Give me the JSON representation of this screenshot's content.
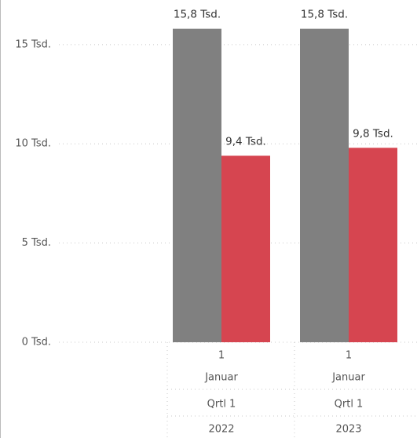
{
  "chart_data": {
    "type": "bar",
    "category_levels": [
      [
        "1",
        "1"
      ],
      [
        "Januar",
        "Januar"
      ],
      [
        "Qrtl 1",
        "Qrtl 1"
      ],
      [
        "2022",
        "2023"
      ]
    ],
    "series": [
      {
        "color": "#808080",
        "values": [
          15800,
          15800
        ],
        "value_labels": [
          "15,8 Tsd.",
          "15,8 Tsd."
        ]
      },
      {
        "color": "#d64550",
        "values": [
          9400,
          9800
        ],
        "value_labels": [
          "9,4 Tsd.",
          "9,8 Tsd."
        ]
      }
    ],
    "ylim": [
      0,
      17250
    ],
    "yticks": [
      {
        "value": 0,
        "label": "0 Tsd."
      },
      {
        "value": 5000,
        "label": "5 Tsd."
      },
      {
        "value": 10000,
        "label": "10 Tsd."
      },
      {
        "value": 15000,
        "label": "15 Tsd."
      }
    ],
    "grid": true
  }
}
